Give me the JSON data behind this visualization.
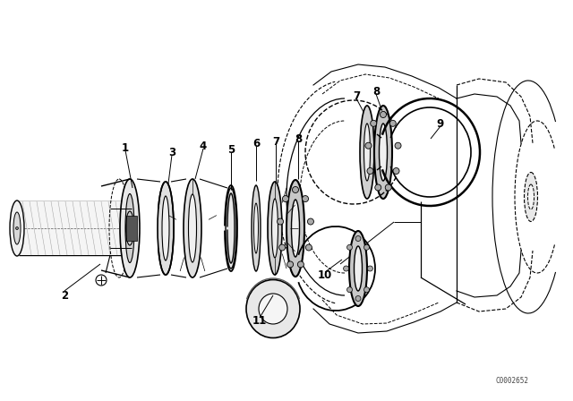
{
  "background_color": "#ffffff",
  "line_color": "#000000",
  "fig_width": 6.4,
  "fig_height": 4.48,
  "dpi": 100,
  "watermark": "C0002652"
}
